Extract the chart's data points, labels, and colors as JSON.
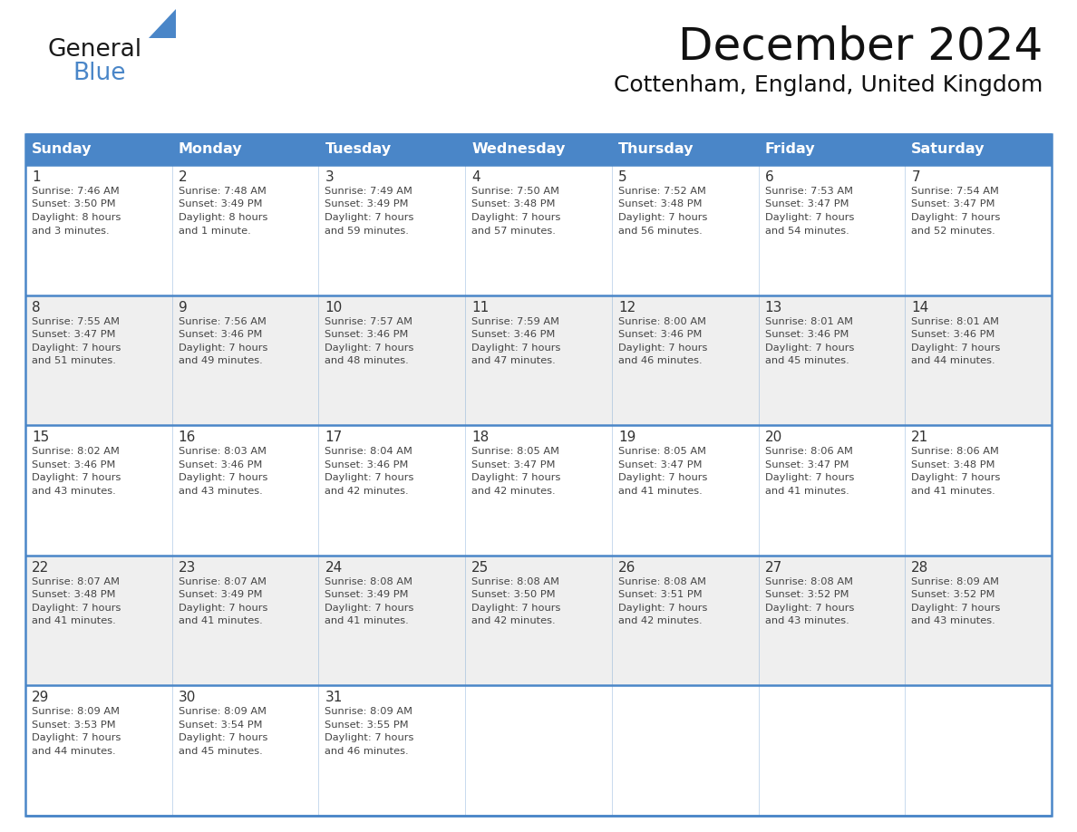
{
  "title": "December 2024",
  "subtitle": "Cottenham, England, United Kingdom",
  "days_of_week": [
    "Sunday",
    "Monday",
    "Tuesday",
    "Wednesday",
    "Thursday",
    "Friday",
    "Saturday"
  ],
  "header_bg": "#4a86c8",
  "header_text": "#ffffff",
  "row_bg_even": "#ffffff",
  "row_bg_odd": "#efefef",
  "border_color": "#4a86c8",
  "text_color": "#444444",
  "day_num_color": "#333333",
  "logo_color_general": "#1a1a1a",
  "logo_color_blue": "#4a86c8",
  "logo_triangle_color": "#4a86c8",
  "calendar_data": [
    [
      {
        "day": 1,
        "sunrise": "7:46 AM",
        "sunset": "3:50 PM",
        "daylight": "8 hours",
        "daylight2": "and 3 minutes."
      },
      {
        "day": 2,
        "sunrise": "7:48 AM",
        "sunset": "3:49 PM",
        "daylight": "8 hours",
        "daylight2": "and 1 minute."
      },
      {
        "day": 3,
        "sunrise": "7:49 AM",
        "sunset": "3:49 PM",
        "daylight": "7 hours",
        "daylight2": "and 59 minutes."
      },
      {
        "day": 4,
        "sunrise": "7:50 AM",
        "sunset": "3:48 PM",
        "daylight": "7 hours",
        "daylight2": "and 57 minutes."
      },
      {
        "day": 5,
        "sunrise": "7:52 AM",
        "sunset": "3:48 PM",
        "daylight": "7 hours",
        "daylight2": "and 56 minutes."
      },
      {
        "day": 6,
        "sunrise": "7:53 AM",
        "sunset": "3:47 PM",
        "daylight": "7 hours",
        "daylight2": "and 54 minutes."
      },
      {
        "day": 7,
        "sunrise": "7:54 AM",
        "sunset": "3:47 PM",
        "daylight": "7 hours",
        "daylight2": "and 52 minutes."
      }
    ],
    [
      {
        "day": 8,
        "sunrise": "7:55 AM",
        "sunset": "3:47 PM",
        "daylight": "7 hours",
        "daylight2": "and 51 minutes."
      },
      {
        "day": 9,
        "sunrise": "7:56 AM",
        "sunset": "3:46 PM",
        "daylight": "7 hours",
        "daylight2": "and 49 minutes."
      },
      {
        "day": 10,
        "sunrise": "7:57 AM",
        "sunset": "3:46 PM",
        "daylight": "7 hours",
        "daylight2": "and 48 minutes."
      },
      {
        "day": 11,
        "sunrise": "7:59 AM",
        "sunset": "3:46 PM",
        "daylight": "7 hours",
        "daylight2": "and 47 minutes."
      },
      {
        "day": 12,
        "sunrise": "8:00 AM",
        "sunset": "3:46 PM",
        "daylight": "7 hours",
        "daylight2": "and 46 minutes."
      },
      {
        "day": 13,
        "sunrise": "8:01 AM",
        "sunset": "3:46 PM",
        "daylight": "7 hours",
        "daylight2": "and 45 minutes."
      },
      {
        "day": 14,
        "sunrise": "8:01 AM",
        "sunset": "3:46 PM",
        "daylight": "7 hours",
        "daylight2": "and 44 minutes."
      }
    ],
    [
      {
        "day": 15,
        "sunrise": "8:02 AM",
        "sunset": "3:46 PM",
        "daylight": "7 hours",
        "daylight2": "and 43 minutes."
      },
      {
        "day": 16,
        "sunrise": "8:03 AM",
        "sunset": "3:46 PM",
        "daylight": "7 hours",
        "daylight2": "and 43 minutes."
      },
      {
        "day": 17,
        "sunrise": "8:04 AM",
        "sunset": "3:46 PM",
        "daylight": "7 hours",
        "daylight2": "and 42 minutes."
      },
      {
        "day": 18,
        "sunrise": "8:05 AM",
        "sunset": "3:47 PM",
        "daylight": "7 hours",
        "daylight2": "and 42 minutes."
      },
      {
        "day": 19,
        "sunrise": "8:05 AM",
        "sunset": "3:47 PM",
        "daylight": "7 hours",
        "daylight2": "and 41 minutes."
      },
      {
        "day": 20,
        "sunrise": "8:06 AM",
        "sunset": "3:47 PM",
        "daylight": "7 hours",
        "daylight2": "and 41 minutes."
      },
      {
        "day": 21,
        "sunrise": "8:06 AM",
        "sunset": "3:48 PM",
        "daylight": "7 hours",
        "daylight2": "and 41 minutes."
      }
    ],
    [
      {
        "day": 22,
        "sunrise": "8:07 AM",
        "sunset": "3:48 PM",
        "daylight": "7 hours",
        "daylight2": "and 41 minutes."
      },
      {
        "day": 23,
        "sunrise": "8:07 AM",
        "sunset": "3:49 PM",
        "daylight": "7 hours",
        "daylight2": "and 41 minutes."
      },
      {
        "day": 24,
        "sunrise": "8:08 AM",
        "sunset": "3:49 PM",
        "daylight": "7 hours",
        "daylight2": "and 41 minutes."
      },
      {
        "day": 25,
        "sunrise": "8:08 AM",
        "sunset": "3:50 PM",
        "daylight": "7 hours",
        "daylight2": "and 42 minutes."
      },
      {
        "day": 26,
        "sunrise": "8:08 AM",
        "sunset": "3:51 PM",
        "daylight": "7 hours",
        "daylight2": "and 42 minutes."
      },
      {
        "day": 27,
        "sunrise": "8:08 AM",
        "sunset": "3:52 PM",
        "daylight": "7 hours",
        "daylight2": "and 43 minutes."
      },
      {
        "day": 28,
        "sunrise": "8:09 AM",
        "sunset": "3:52 PM",
        "daylight": "7 hours",
        "daylight2": "and 43 minutes."
      }
    ],
    [
      {
        "day": 29,
        "sunrise": "8:09 AM",
        "sunset": "3:53 PM",
        "daylight": "7 hours",
        "daylight2": "and 44 minutes."
      },
      {
        "day": 30,
        "sunrise": "8:09 AM",
        "sunset": "3:54 PM",
        "daylight": "7 hours",
        "daylight2": "and 45 minutes."
      },
      {
        "day": 31,
        "sunrise": "8:09 AM",
        "sunset": "3:55 PM",
        "daylight": "7 hours",
        "daylight2": "and 46 minutes."
      },
      null,
      null,
      null,
      null
    ]
  ]
}
